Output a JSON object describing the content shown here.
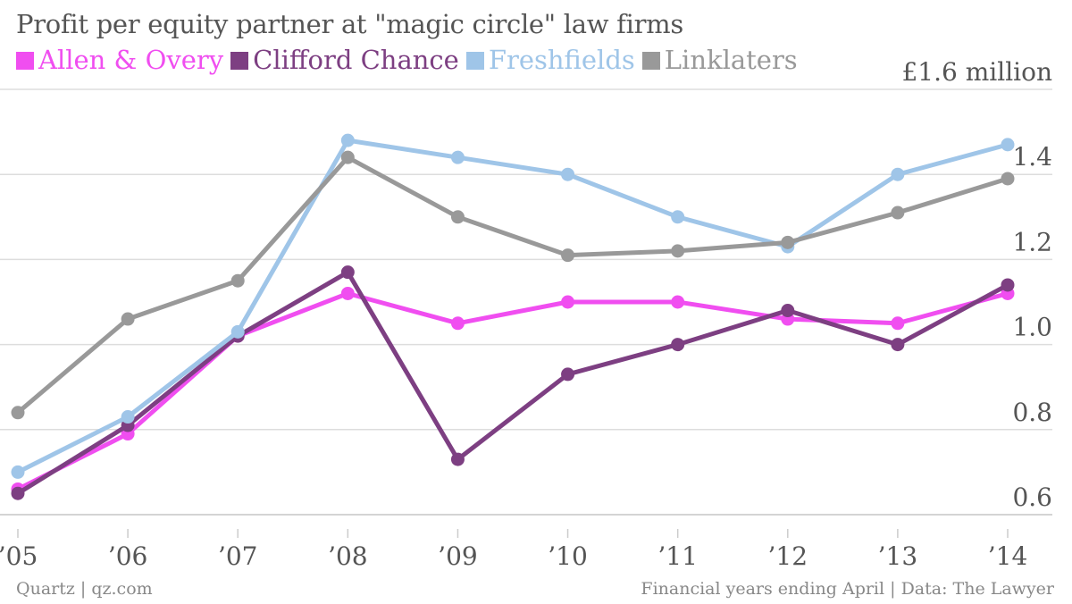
{
  "title": "Profit per equity partner at \"magic circle\" law firms",
  "footer_left": "Quartz | qz.com",
  "footer_right": "Financial years ending April | Data: The Lawyer",
  "colors": {
    "Allen & Overy": "#f04ef0",
    "Clifford Chance": "#7d3f82",
    "Freshfields": "#9fc5e8",
    "Linklaters": "#999999",
    "grid": "#dddddd",
    "text": "#555555"
  },
  "chart_data": {
    "type": "line",
    "title": "Profit per equity partner at \"magic circle\" law firms",
    "x": [
      "’05",
      "’06",
      "’07",
      "’08",
      "’09",
      "’10",
      "’11",
      "’12",
      "’13",
      "’14"
    ],
    "series": [
      {
        "name": "Allen & Overy",
        "values": [
          0.66,
          0.79,
          1.02,
          1.12,
          1.05,
          1.1,
          1.1,
          1.06,
          1.05,
          1.12
        ]
      },
      {
        "name": "Clifford Chance",
        "values": [
          0.65,
          0.81,
          1.02,
          1.17,
          0.73,
          0.93,
          1.0,
          1.08,
          1.0,
          1.14
        ]
      },
      {
        "name": "Freshfields",
        "values": [
          0.7,
          0.83,
          1.03,
          1.48,
          1.44,
          1.4,
          1.3,
          1.23,
          1.4,
          1.47
        ]
      },
      {
        "name": "Linklaters",
        "values": [
          0.84,
          1.06,
          1.15,
          1.44,
          1.3,
          1.21,
          1.22,
          1.24,
          1.31,
          1.39
        ]
      }
    ],
    "y_ticks": [
      "0.6",
      "0.8",
      "1.0",
      "1.2",
      "1.4",
      "£1.6 million"
    ],
    "y_tick_values": [
      0.6,
      0.8,
      1.0,
      1.2,
      1.4,
      1.6
    ],
    "ylim": [
      0.58,
      1.6
    ],
    "y_axis_position": "right",
    "grid": true,
    "legend_position": "top-left"
  }
}
